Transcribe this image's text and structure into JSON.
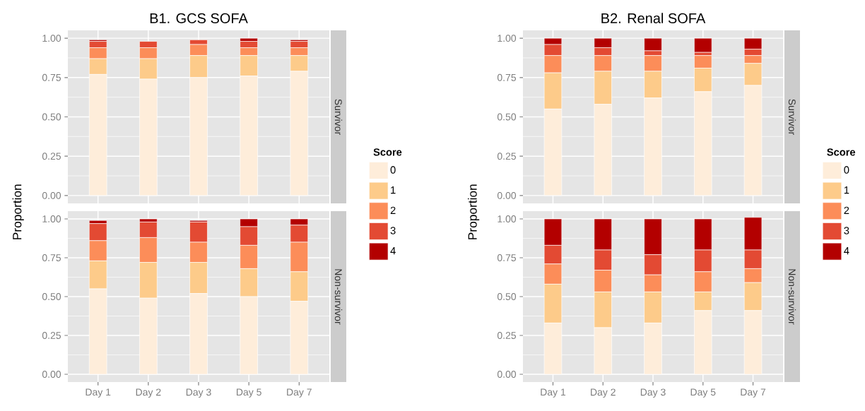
{
  "chart_data": [
    {
      "type": "bar",
      "title": "B1.  GCS SOFA",
      "annotations": [
        "Survivor"
      ],
      "ylabel": "Proportion",
      "legend_title": "Score",
      "legend": "right",
      "stacked": true,
      "grid": true,
      "tick_labels": "y",
      "categories": [
        null,
        null,
        null,
        null,
        null
      ],
      "ylim": [
        -0.05,
        1.05
      ],
      "yticks": [
        {
          "value": 0,
          "label": "0.00"
        },
        {
          "value": 0.25,
          "label": "0.25"
        },
        {
          "value": 0.5,
          "label": "0.50"
        },
        {
          "value": 0.75,
          "label": "0.75"
        },
        {
          "value": 1,
          "label": "1.00"
        }
      ],
      "series": [
        {
          "name": "0",
          "color": "#FEEDDA",
          "values": [
            0.77,
            0.74,
            0.75,
            0.76,
            0.79
          ]
        },
        {
          "name": "1",
          "color": "#FDCB8A",
          "values": [
            0.1,
            0.13,
            0.14,
            0.13,
            0.1
          ]
        },
        {
          "name": "2",
          "color": "#FC8D59",
          "values": [
            0.07,
            0.07,
            0.07,
            0.05,
            0.05
          ]
        },
        {
          "name": "3",
          "color": "#E34A33",
          "values": [
            0.04,
            0.04,
            0.03,
            0.04,
            0.04
          ]
        },
        {
          "name": "4",
          "color": "#B30000",
          "values": [
            0.01,
            0,
            0,
            0.02,
            0.01
          ]
        }
      ]
    },
    {
      "type": "bar",
      "annotations": [
        "Non-survivor"
      ],
      "stacked": true,
      "grid": true,
      "categories": [
        "Day 1",
        "Day 2",
        "Day 3",
        "Day 5",
        "Day 7"
      ],
      "ylim": [
        -0.05,
        1.05
      ],
      "yticks": [
        {
          "value": 0,
          "label": "0.00"
        },
        {
          "value": 0.25,
          "label": "0.25"
        },
        {
          "value": 0.5,
          "label": "0.50"
        },
        {
          "value": 0.75,
          "label": "0.75"
        },
        {
          "value": 1,
          "label": "1.00"
        }
      ],
      "series": [
        {
          "color": "#FEEDDA",
          "values": [
            0.55,
            0.49,
            0.52,
            0.5,
            0.47
          ]
        },
        {
          "color": "#FDCB8A",
          "values": [
            0.18,
            0.23,
            0.2,
            0.18,
            0.19
          ]
        },
        {
          "color": "#FC8D59",
          "values": [
            0.13,
            0.16,
            0.13,
            0.15,
            0.19
          ]
        },
        {
          "color": "#E34A33",
          "values": [
            0.11,
            0.1,
            0.13,
            0.12,
            0.11
          ]
        },
        {
          "color": "#B30000",
          "values": [
            0.02,
            0.02,
            0.01,
            0.05,
            0.04
          ]
        }
      ]
    },
    {
      "type": "bar",
      "title": "B2.  Renal SOFA",
      "annotations": [
        "Survivor"
      ],
      "ylabel": "Proportion",
      "legend_title": "Score",
      "legend": "right",
      "stacked": true,
      "grid": true,
      "tick_labels": "y",
      "categories": [
        null,
        null,
        null,
        null,
        null
      ],
      "ylim": [
        -0.05,
        1.05
      ],
      "yticks": [
        {
          "value": 0,
          "label": "0.00"
        },
        {
          "value": 0.25,
          "label": "0.25"
        },
        {
          "value": 0.5,
          "label": "0.50"
        },
        {
          "value": 0.75,
          "label": "0.75"
        },
        {
          "value": 1,
          "label": "1.00"
        }
      ],
      "series": [
        {
          "name": "0",
          "color": "#FEEDDA",
          "values": [
            0.55,
            0.58,
            0.62,
            0.66,
            0.7
          ]
        },
        {
          "name": "1",
          "color": "#FDCB8A",
          "values": [
            0.23,
            0.21,
            0.17,
            0.15,
            0.14
          ]
        },
        {
          "name": "2",
          "color": "#FC8D59",
          "values": [
            0.11,
            0.1,
            0.1,
            0.08,
            0.05
          ]
        },
        {
          "name": "3",
          "color": "#E34A33",
          "values": [
            0.07,
            0.05,
            0.03,
            0.02,
            0.04
          ]
        },
        {
          "name": "4",
          "color": "#B30000",
          "values": [
            0.04,
            0.06,
            0.08,
            0.09,
            0.07
          ]
        }
      ]
    },
    {
      "type": "bar",
      "annotations": [
        "Non-survivor"
      ],
      "stacked": true,
      "grid": true,
      "categories": [
        "Day 1",
        "Day 2",
        "Day 3",
        "Day 5",
        "Day 7"
      ],
      "ylim": [
        -0.05,
        1.05
      ],
      "yticks": [
        {
          "value": 0,
          "label": "0.00"
        },
        {
          "value": 0.25,
          "label": "0.25"
        },
        {
          "value": 0.5,
          "label": "0.50"
        },
        {
          "value": 0.75,
          "label": "0.75"
        },
        {
          "value": 1,
          "label": "1.00"
        }
      ],
      "series": [
        {
          "color": "#FEEDDA",
          "values": [
            0.33,
            0.3,
            0.33,
            0.41,
            0.41
          ]
        },
        {
          "color": "#FDCB8A",
          "values": [
            0.25,
            0.23,
            0.2,
            0.12,
            0.18
          ]
        },
        {
          "color": "#FC8D59",
          "values": [
            0.13,
            0.14,
            0.11,
            0.13,
            0.09
          ]
        },
        {
          "color": "#E34A33",
          "values": [
            0.12,
            0.13,
            0.13,
            0.14,
            0.12
          ]
        },
        {
          "color": "#B30000",
          "values": [
            0.17,
            0.2,
            0.23,
            0.2,
            0.21
          ]
        }
      ]
    }
  ]
}
